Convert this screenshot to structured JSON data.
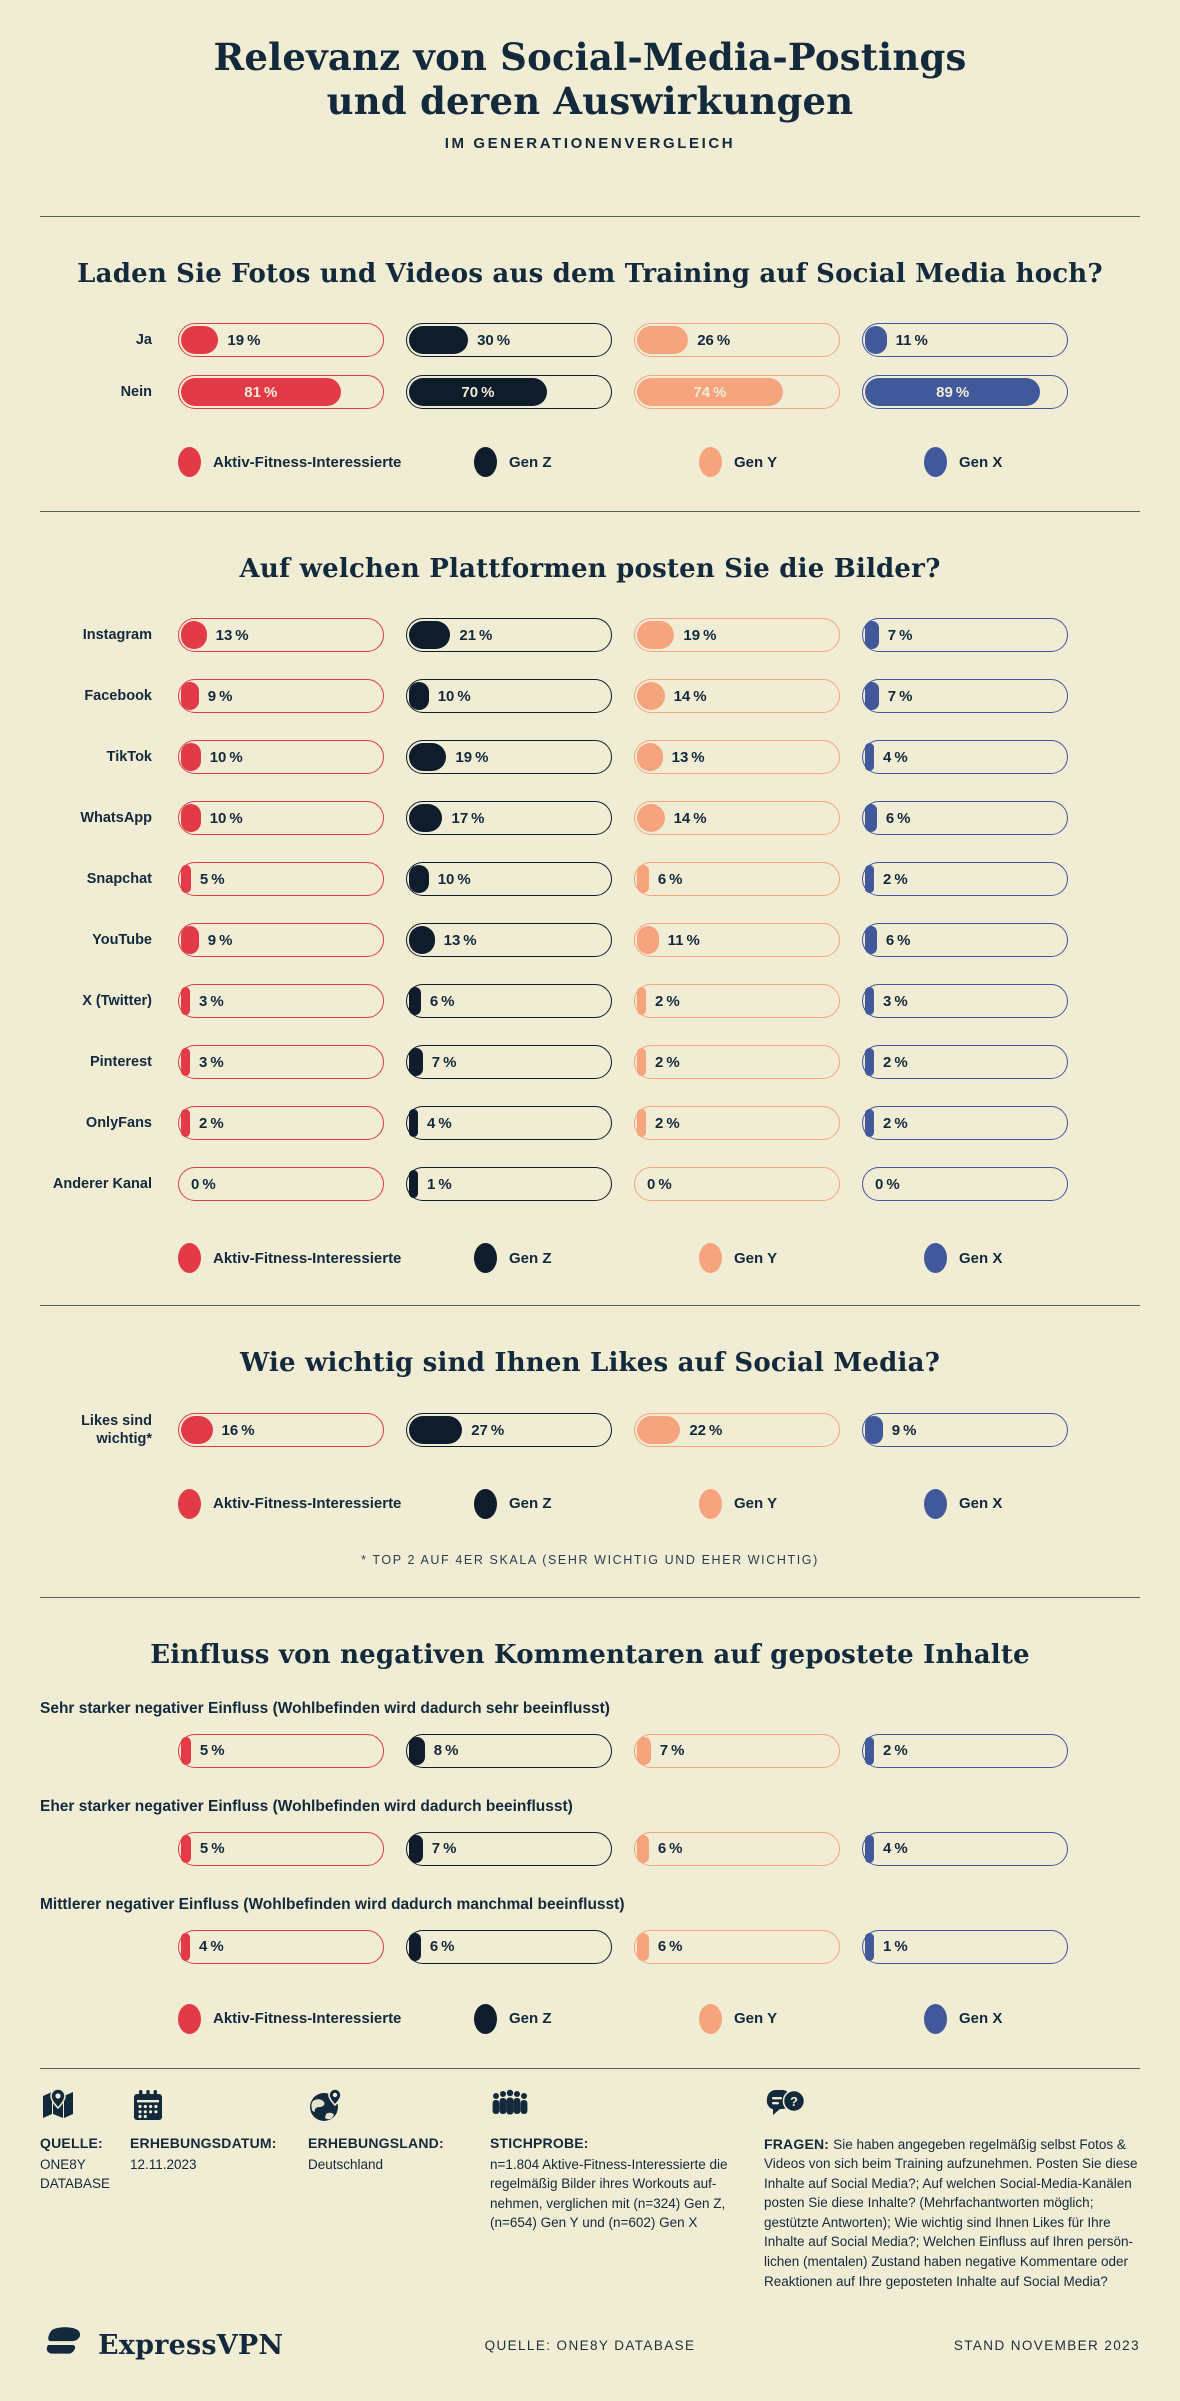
{
  "page": {
    "title_line1": "Relevanz von Social-Media-Postings",
    "title_line2": "und deren Auswirkungen",
    "subtitle": "IM GENERATIONENVERGLEICH"
  },
  "colors": {
    "background": "#F1EDD5",
    "ink": "#13293C",
    "red": "#E23B47",
    "navy": "#0E1C2B",
    "peach": "#F5A47D",
    "blue": "#41589B",
    "light_text": "#F1EDD5"
  },
  "groups": [
    {
      "name": "Aktiv-Fitness-Interessierte",
      "color_key": "red"
    },
    {
      "name": "Gen Z",
      "color_key": "navy"
    },
    {
      "name": "Gen Y",
      "color_key": "peach"
    },
    {
      "name": "Gen X",
      "color_key": "blue"
    }
  ],
  "chart_data": [
    {
      "id": "upload",
      "type": "bar",
      "title": "Laden Sie Fotos und Videos aus dem Training auf Social Media hoch?",
      "categories": [
        "Ja",
        "Nein"
      ],
      "series": [
        {
          "name": "Aktiv-Fitness-Interessierte",
          "values": [
            19,
            81
          ]
        },
        {
          "name": "Gen Z",
          "values": [
            30,
            70
          ]
        },
        {
          "name": "Gen Y",
          "values": [
            26,
            74
          ]
        },
        {
          "name": "Gen X",
          "values": [
            11,
            89
          ]
        }
      ],
      "unit": "%",
      "xlim": [
        0,
        100
      ],
      "legend_position": "bottom"
    },
    {
      "id": "platforms",
      "type": "bar",
      "title": "Auf welchen Plattformen posten Sie die Bilder?",
      "categories": [
        "Instagram",
        "Facebook",
        "TikTok",
        "WhatsApp",
        "Snapchat",
        "YouTube",
        "X (Twitter)",
        "Pinterest",
        "OnlyFans",
        "Anderer Kanal"
      ],
      "series": [
        {
          "name": "Aktiv-Fitness-Interessierte",
          "values": [
            13,
            9,
            10,
            10,
            5,
            9,
            3,
            3,
            2,
            0
          ]
        },
        {
          "name": "Gen Z",
          "values": [
            21,
            10,
            19,
            17,
            10,
            13,
            6,
            7,
            4,
            1
          ]
        },
        {
          "name": "Gen Y",
          "values": [
            19,
            14,
            13,
            14,
            6,
            11,
            2,
            2,
            2,
            0
          ]
        },
        {
          "name": "Gen X",
          "values": [
            7,
            7,
            4,
            6,
            2,
            6,
            3,
            2,
            2,
            0
          ]
        }
      ],
      "unit": "%",
      "xlim": [
        0,
        100
      ],
      "legend_position": "bottom"
    },
    {
      "id": "likes",
      "type": "bar",
      "title": "Wie wichtig sind Ihnen Likes auf Social Media?",
      "categories": [
        "Likes sind wichtig*"
      ],
      "series": [
        {
          "name": "Aktiv-Fitness-Interessierte",
          "values": [
            16
          ]
        },
        {
          "name": "Gen Z",
          "values": [
            27
          ]
        },
        {
          "name": "Gen Y",
          "values": [
            22
          ]
        },
        {
          "name": "Gen X",
          "values": [
            9
          ]
        }
      ],
      "unit": "%",
      "xlim": [
        0,
        100
      ],
      "legend_position": "bottom",
      "footnote": "* TOP 2 AUF 4ER SKALA (SEHR WICHTIG UND EHER WICHTIG)"
    },
    {
      "id": "negative_comments",
      "type": "bar",
      "title": "Einfluss von negativen Kommentaren auf gepostete Inhalte",
      "categories": [
        "Sehr starker negativer Einfluss (Wohlbefinden wird dadurch sehr beeinflusst)",
        "Eher starker negativer Einfluss (Wohlbefinden wird dadurch beeinflusst)",
        "Mittlerer negativer Einfluss (Wohlbefinden wird dadurch manchmal beeinflusst)"
      ],
      "series": [
        {
          "name": "Aktiv-Fitness-Interessierte",
          "values": [
            5,
            5,
            4
          ]
        },
        {
          "name": "Gen Z",
          "values": [
            8,
            7,
            6
          ]
        },
        {
          "name": "Gen Y",
          "values": [
            7,
            6,
            6
          ]
        },
        {
          "name": "Gen X",
          "values": [
            2,
            4,
            1
          ]
        }
      ],
      "unit": "%",
      "xlim": [
        0,
        100
      ],
      "legend_position": "bottom"
    }
  ],
  "footer": {
    "columns": [
      {
        "icon": "map-pin-icon",
        "label": "QUELLE:",
        "text": "ONE8Y\nDATABASE",
        "inline": false
      },
      {
        "icon": "calendar-icon",
        "label": "ERHEBUNGSDATUM:",
        "text": "12.11.2023",
        "inline": false
      },
      {
        "icon": "globe-pin-icon",
        "label": "ERHEBUNGSLAND:",
        "text": "Deutschland",
        "inline": false
      },
      {
        "icon": "people-group-icon",
        "label": "STICHPROBE:",
        "text": "n=1.804 Aktive-Fitness-Interessierte die\nregelmäßig Bilder ihres Workouts auf-\nnehmen, verglichen mit (n=324) Gen Z,\n(n=654) Gen Y und (n=602) Gen X",
        "inline": false
      },
      {
        "icon": "chat-question-icon",
        "label": "FRAGEN:",
        "text": "Sie haben angegeben regelmäßig selbst Fotos &\nVideos von sich beim Training aufzunehmen. Posten Sie diese\nInhalte auf Social Media?; Auf welchen Social-Media-Kanälen\nposten Sie diese Inhalte? (Mehrfachantworten möglich;\ngestützte Antworten); Wie wichtig sind Ihnen Likes für Ihre\nInhalte auf Social Media?; Welchen Einfluss auf Ihren persön-\nlichen (mentalen) Zustand haben negative Kommentare oder\nReaktionen auf Ihre geposteten Inhalte auf Social Media?",
        "inline": true
      }
    ]
  },
  "bottom_bar": {
    "brand": "ExpressVPN",
    "source": "QUELLE: ONE8Y DATABASE",
    "stand": "STAND NOVEMBER 2023"
  }
}
